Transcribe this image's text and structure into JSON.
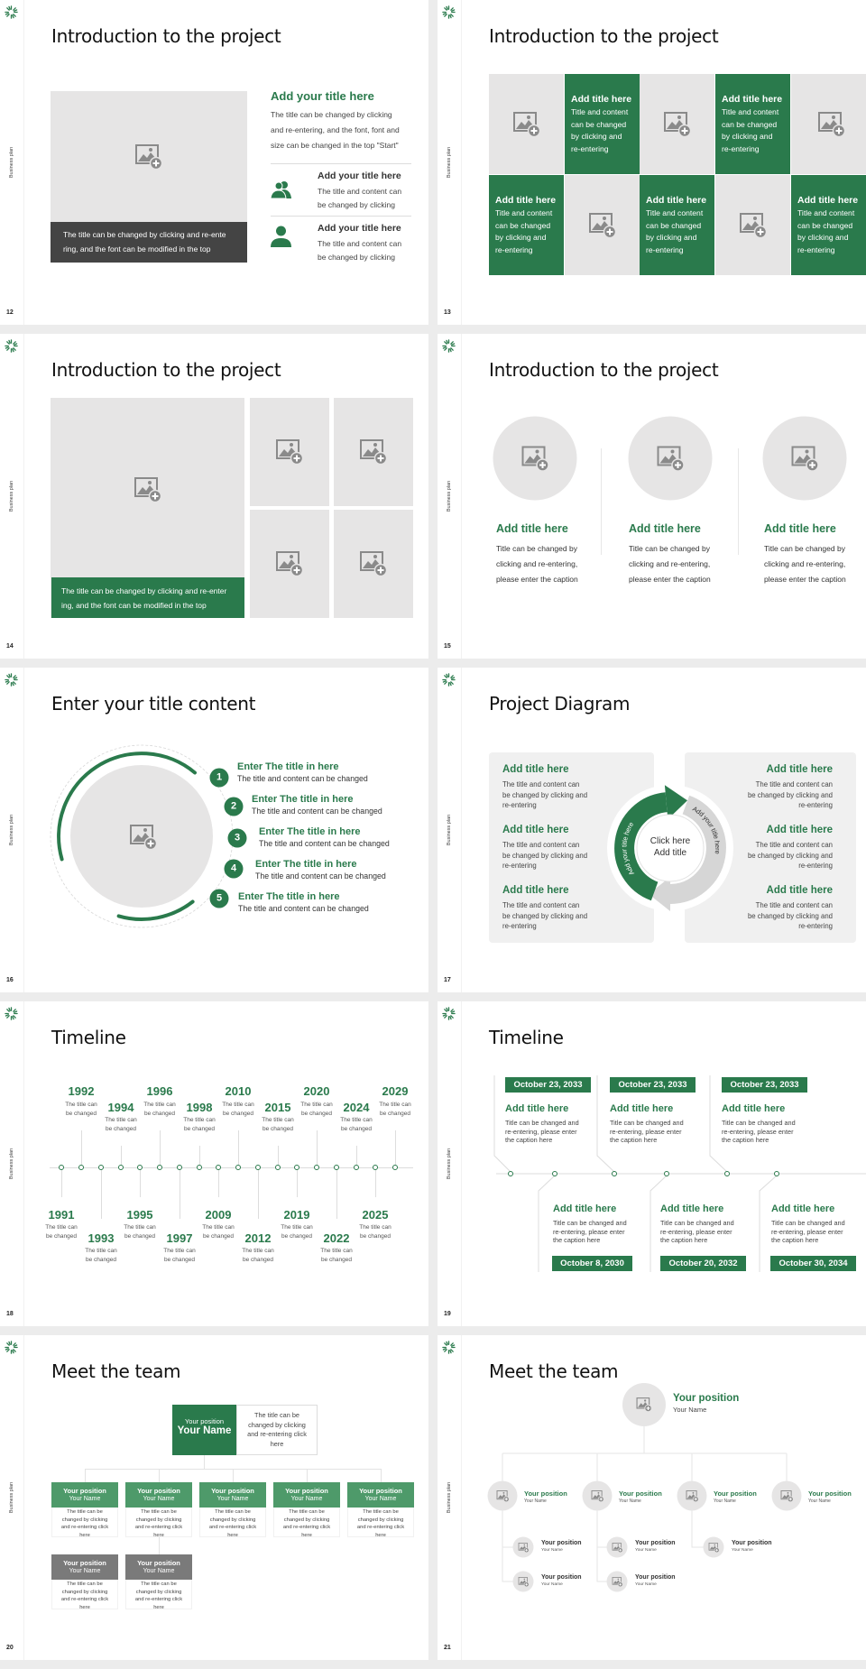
{
  "sidebar_label": "Business plan",
  "colors": {
    "accent": "#2a7a4c",
    "accent_light": "#4e9a6a",
    "placeholder": "#e6e5e5",
    "caption_dark": "#444444",
    "gray_header": "#7a7a7a"
  },
  "icons": {
    "logo": "sunburst-logo",
    "placeholder": "image-add-icon",
    "group": "group-icon",
    "user": "user-icon"
  },
  "slides": [
    {
      "number": "12",
      "title": "Introduction to the project",
      "caption": "The title can be changed by clicking and re-ente\nring, and the font can be modified in the top",
      "heading": "Add your title here",
      "body": "The title can be changed by clicking\nand re-entering, and the font, font and\nsize can be changed in the top \"Start\"",
      "items": [
        {
          "title": "Add your title here",
          "body": "The title and content can\nbe changed by clicking"
        },
        {
          "title": "Add your title here",
          "body": "The title and content can\nbe changed by clicking"
        }
      ]
    },
    {
      "number": "13",
      "title": "Introduction to the project",
      "tiles": [
        {
          "title": "Add title here",
          "body": "Title and content\ncan be changed\nby clicking and\nre-entering"
        },
        {
          "title": "Add title here",
          "body": "Title and content\ncan be changed\nby clicking and\nre-entering"
        },
        {
          "title": "Add title here",
          "body": "Title and content\ncan be changed\nby clicking and\nre-entering"
        },
        {
          "title": "Add title here",
          "body": "Title and content\ncan be changed\nby clicking and\nre-entering"
        },
        {
          "title": "Add title here",
          "body": "Title and content\ncan be changed\nby clicking and\nre-entering"
        }
      ]
    },
    {
      "number": "14",
      "title": "Introduction to the project",
      "caption": "The title can be changed by clicking and re-enter\ning, and the font can be modified in the top"
    },
    {
      "number": "15",
      "title": "Introduction to the project",
      "columns": [
        {
          "title": "Add title here",
          "body": "Title can be changed by\nclicking and re-entering,\nplease enter the caption"
        },
        {
          "title": "Add title here",
          "body": "Title can be changed by\nclicking and re-entering,\nplease enter the caption"
        },
        {
          "title": "Add title here",
          "body": "Title can be changed by\nclicking and re-entering,\nplease enter the caption"
        }
      ]
    },
    {
      "number": "16",
      "title": "Enter your title content",
      "items": [
        {
          "num": "1",
          "title": "Enter The title in here",
          "body": "The title and content can be changed"
        },
        {
          "num": "2",
          "title": "Enter The title in here",
          "body": "The title and content can be changed"
        },
        {
          "num": "3",
          "title": "Enter The title in here",
          "body": "The title and content can be changed"
        },
        {
          "num": "4",
          "title": "Enter The title in here",
          "body": "The title and content can be changed"
        },
        {
          "num": "5",
          "title": "Enter The title in here",
          "body": "The title and content can be changed"
        }
      ]
    },
    {
      "number": "17",
      "title": "Project Diagram",
      "center": "Click here\nAdd title",
      "arrow_labels": [
        "Add your title here",
        "Add your title here"
      ],
      "left": [
        {
          "title": "Add title here",
          "body": "The title and content can\nbe changed by clicking and\nre-entering"
        },
        {
          "title": "Add title here",
          "body": "The title and content can\nbe changed by clicking and\nre-entering"
        },
        {
          "title": "Add title here",
          "body": "The title and content can\nbe changed by clicking and\nre-entering"
        }
      ],
      "right": [
        {
          "title": "Add title here",
          "body": "The title and content can\nbe changed by clicking and\nre-entering"
        },
        {
          "title": "Add title here",
          "body": "The title and content can\nbe changed by clicking and\nre-entering"
        },
        {
          "title": "Add title here",
          "body": "The title and content can\nbe changed by clicking and\nre-entering"
        }
      ]
    },
    {
      "number": "18",
      "title": "Timeline",
      "events": [
        {
          "year": "1991",
          "text": "The title can\nbe changed"
        },
        {
          "year": "1992",
          "text": "The title can\nbe changed"
        },
        {
          "year": "1993",
          "text": "The title can\nbe changed"
        },
        {
          "year": "1994",
          "text": "The title can\nbe changed"
        },
        {
          "year": "1995",
          "text": "The title can\nbe changed"
        },
        {
          "year": "1996",
          "text": "The title can\nbe changed"
        },
        {
          "year": "1997",
          "text": "The title can\nbe changed"
        },
        {
          "year": "1998",
          "text": "The title can\nbe changed"
        },
        {
          "year": "2009",
          "text": "The title can\nbe changed"
        },
        {
          "year": "2010",
          "text": "The title can\nbe changed"
        },
        {
          "year": "2012",
          "text": "The title can\nbe changed"
        },
        {
          "year": "2015",
          "text": "The title can\nbe changed"
        },
        {
          "year": "2019",
          "text": "The title can\nbe changed"
        },
        {
          "year": "2020",
          "text": "The title can\nbe changed"
        },
        {
          "year": "2022",
          "text": "The title can\nbe changed"
        },
        {
          "year": "2024",
          "text": "The title can\nbe changed"
        },
        {
          "year": "2025",
          "text": "The title can\nbe changed"
        },
        {
          "year": "2029",
          "text": "The title can\nbe changed"
        }
      ]
    },
    {
      "number": "19",
      "title": "Timeline",
      "top": [
        {
          "date": "October 23, 2033",
          "title": "Add title here",
          "body": "Title can be changed and\nre-entering, please enter\nthe caption here"
        },
        {
          "date": "October 23, 2033",
          "title": "Add title here",
          "body": "Title can be changed and\nre-entering, please enter\nthe caption here"
        },
        {
          "date": "October 23, 2033",
          "title": "Add title here",
          "body": "Title can be changed and\nre-entering, please enter\nthe caption here"
        }
      ],
      "bottom": [
        {
          "date": "October 8, 2030",
          "title": "Add title here",
          "body": "Title can be changed and\nre-entering, please enter\nthe caption here"
        },
        {
          "date": "October 20, 2032",
          "title": "Add title here",
          "body": "Title can be changed and\nre-entering, please enter\nthe caption here"
        },
        {
          "date": "October 30, 2034",
          "title": "Add title here",
          "body": "Title can be changed and\nre-entering, please enter\nthe caption here"
        }
      ]
    },
    {
      "number": "20",
      "title": "Meet the team",
      "lead": {
        "position": "Your position",
        "name": "Your Name",
        "desc": "The title can be\nchanged by clicking\nand re-entering click\nhere"
      },
      "members": [
        {
          "position": "Your position",
          "name": "Your Name",
          "desc": "The title can be\nchanged by clicking\nand re-entering click\nhere"
        },
        {
          "position": "Your position",
          "name": "Your Name",
          "desc": "The title can be\nchanged by clicking\nand re-entering click\nhere"
        },
        {
          "position": "Your position",
          "name": "Your Name",
          "desc": "The title can be\nchanged by clicking\nand re-entering click\nhere"
        },
        {
          "position": "Your position",
          "name": "Your Name",
          "desc": "The title can be\nchanged by clicking\nand re-entering click\nhere"
        },
        {
          "position": "Your position",
          "name": "Your Name",
          "desc": "The title can be\nchanged by clicking\nand re-entering click\nhere"
        },
        {
          "position": "Your position",
          "name": "Your Name",
          "desc": "The title can be\nchanged by clicking\nand re-entering click\nhere"
        },
        {
          "position": "Your position",
          "name": "Your Name",
          "desc": "The title can be\nchanged by clicking\nand re-entering click\nhere"
        }
      ]
    },
    {
      "number": "21",
      "title": "Meet the team",
      "lead": {
        "position": "Your position",
        "name": "Your Name"
      },
      "managers": [
        {
          "position": "Your position",
          "name": "Your Name"
        },
        {
          "position": "Your position",
          "name": "Your Name"
        },
        {
          "position": "Your position",
          "name": "Your Name"
        },
        {
          "position": "Your position",
          "name": "Your Name"
        }
      ],
      "reports": [
        {
          "position": "Your position",
          "name": "Your Name"
        },
        {
          "position": "Your position",
          "name": "Your Name"
        },
        {
          "position": "Your position",
          "name": "Your Name"
        },
        {
          "position": "Your position",
          "name": "Your Name"
        },
        {
          "position": "Your position",
          "name": "Your Name"
        }
      ]
    }
  ]
}
